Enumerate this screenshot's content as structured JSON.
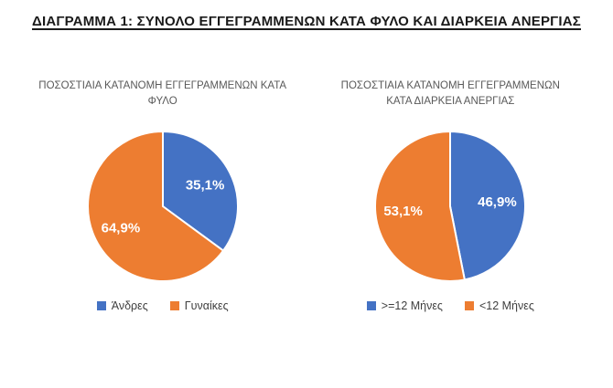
{
  "page": {
    "title": "ΔΙΑΓΡΑΜΜΑ 1: ΣΥΝΟΛΟ ΕΓΓΕΓΡΑΜΜΕΝΩΝ ΚΑΤΑ ΦΥΛΟ ΚΑΙ ΔΙΑΡΚΕΙΑ ΑΝΕΡΓΙΑΣ"
  },
  "colors": {
    "series_blue": "#4472C4",
    "series_orange": "#ED7D31",
    "chart_title_text": "#595959",
    "legend_text": "#3F3F3F",
    "main_title_text": "#1A1A1A",
    "slice_label_text": "#FFFFFF",
    "background": "#FFFFFF"
  },
  "chart_data": [
    {
      "type": "pie",
      "title": "ΠΟΣΟΣΤΙΑΙΑ ΚΑΤΑΝΟΜΗ ΕΓΓΕΓΡΑΜΜΕΝΩΝ ΚΑΤΑ ΦΥΛΟ",
      "title_lines": [
        "ΠΟΣΟΣΤΙΑΙΑ ΚΑΤΑΝΟΜΗ ΕΓΓΕΓΡΑΜΜΕΝΩΝ ΚΑΤΑ",
        "ΦΥΛΟ"
      ],
      "start_angle_deg": 0,
      "direction": "clockwise",
      "legend_position": "bottom",
      "slices": [
        {
          "label": "Άνδρες",
          "value": 35.1,
          "display": "35,1%",
          "color": "#4472C4"
        },
        {
          "label": "Γυναίκες",
          "value": 64.9,
          "display": "64,9%",
          "color": "#ED7D31"
        }
      ]
    },
    {
      "type": "pie",
      "title": "ΠΟΣΟΣΤΙΑΙΑ ΚΑΤΑΝΟΜΗ ΕΓΓΕΓΡΑΜΜΕΝΩΝ ΚΑΤΑ ΔΙΑΡΚΕΙΑ ΑΝΕΡΓΙΑΣ",
      "title_lines": [
        "ΠΟΣΟΣΤΙΑΙΑ ΚΑΤΑΝΟΜΗ ΕΓΓΕΓΡΑΜΜΕΝΩΝ",
        "ΚΑΤΑ ΔΙΑΡΚΕΙΑ ΑΝΕΡΓΙΑΣ"
      ],
      "start_angle_deg": 0,
      "direction": "clockwise",
      "legend_position": "bottom",
      "slices": [
        {
          "label": ">=12 Μήνες",
          "value": 46.9,
          "display": "46,9%",
          "color": "#4472C4"
        },
        {
          "label": "<12 Μήνες",
          "value": 53.1,
          "display": "53,1%",
          "color": "#ED7D31"
        }
      ]
    }
  ]
}
